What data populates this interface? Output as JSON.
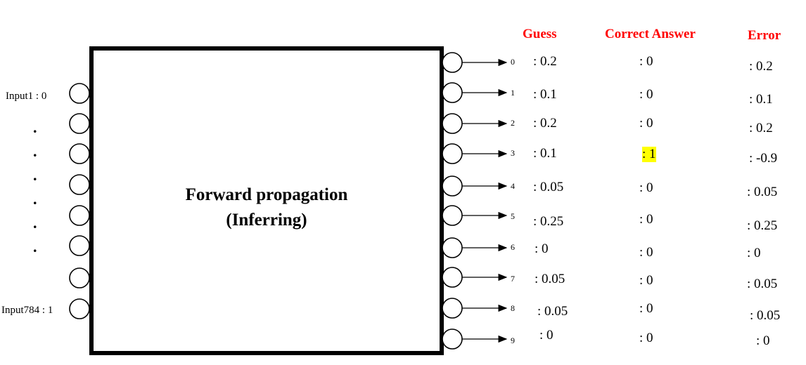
{
  "headers": {
    "guess": "Guess",
    "correct": "Correct Answer",
    "error": "Error",
    "color": "#ff0000"
  },
  "box": {
    "title_line1": "Forward propagation",
    "title_line2": "(Inferring)"
  },
  "inputs": {
    "first": "Input1 : 0",
    "last": "Input784 : 1",
    "dots": [
      ".",
      ".",
      ".",
      ".",
      ".",
      "."
    ]
  },
  "outputs": [
    {
      "index": "0",
      "guess": ": 0.2",
      "correct": ": 0",
      "error": ": 0.2"
    },
    {
      "index": "1",
      "guess": ": 0.1",
      "correct": ": 0",
      "error": ": 0.1"
    },
    {
      "index": "2",
      "guess": ": 0.2",
      "correct": ": 0",
      "error": ": 0.2"
    },
    {
      "index": "3",
      "guess": ": 0.1",
      "correct": ": 1",
      "error": ": -0.9"
    },
    {
      "index": "4",
      "guess": ": 0.05",
      "correct": ": 0",
      "error": ": 0.05"
    },
    {
      "index": "5",
      "guess": ": 0.25",
      "correct": ": 0",
      "error": ": 0.25"
    },
    {
      "index": "6",
      "guess": ": 0",
      "correct": ": 0",
      "error": ": 0"
    },
    {
      "index": "7",
      "guess": ": 0.05",
      "correct": ": 0",
      "error": ": 0.05"
    },
    {
      "index": "8",
      "guess": ": 0.05",
      "correct": ": 0",
      "error": ": 0.05"
    },
    {
      "index": "9",
      "guess": ": 0",
      "correct": ": 0",
      "error": ": 0"
    }
  ],
  "highlight_color": "#ffff00"
}
